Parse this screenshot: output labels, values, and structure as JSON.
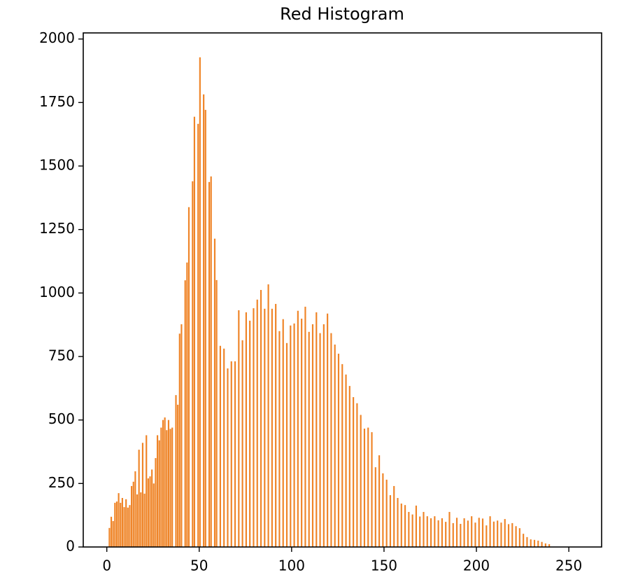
{
  "chart_data": {
    "type": "histogram",
    "title": "Red Histogram",
    "color": "#ef8427",
    "bins": [
      0,
      1,
      2,
      3,
      4,
      5,
      6,
      7,
      8,
      9,
      10,
      11,
      12,
      13,
      14,
      15,
      16,
      17,
      18,
      19,
      20,
      21,
      22,
      23,
      24,
      25,
      26,
      27,
      28,
      29,
      30,
      31,
      32,
      33,
      34,
      35,
      36,
      37,
      38,
      39,
      40,
      41,
      42,
      43,
      44,
      45,
      46,
      47,
      48,
      49,
      50,
      51,
      52,
      53,
      54,
      55,
      56,
      57,
      58,
      59,
      60,
      61,
      62,
      63,
      64,
      65,
      66,
      67,
      68,
      69,
      70,
      71,
      72,
      73,
      74,
      75,
      76,
      77,
      78,
      79,
      80,
      81,
      82,
      83,
      84,
      85,
      86,
      87,
      88,
      89,
      90,
      91,
      92,
      93,
      94,
      95,
      96,
      97,
      98,
      99,
      100,
      101,
      102,
      103,
      104,
      105,
      106,
      107,
      108,
      109,
      110,
      111,
      112,
      113,
      114,
      115,
      116,
      117,
      118,
      119,
      120,
      121,
      122,
      123,
      124,
      125,
      126,
      127,
      128,
      129,
      130,
      131,
      132,
      133,
      134,
      135,
      136,
      137,
      138,
      139,
      140,
      141,
      142,
      143,
      144,
      145,
      146,
      147,
      148,
      149,
      150,
      151,
      152,
      153,
      154,
      155,
      156,
      157,
      158,
      159,
      160,
      161,
      162,
      163,
      164,
      165,
      166,
      167,
      168,
      169,
      170,
      171,
      172,
      173,
      174,
      175,
      176,
      177,
      178,
      179,
      180,
      181,
      182,
      183,
      184,
      185,
      186,
      187,
      188,
      189,
      190,
      191,
      192,
      193,
      194,
      195,
      196,
      197,
      198,
      199,
      200,
      201,
      202,
      203,
      204,
      205,
      206,
      207,
      208,
      209,
      210,
      211,
      212,
      213,
      214,
      215,
      216,
      217,
      218,
      219,
      220,
      221,
      222,
      223,
      224,
      225,
      226,
      227,
      228,
      229,
      230,
      231,
      232,
      233,
      234,
      235,
      236,
      237,
      238,
      239,
      240,
      241
    ],
    "values": [
      0,
      75,
      119,
      102,
      174,
      179,
      212,
      174,
      193,
      157,
      188,
      155,
      165,
      240,
      257,
      298,
      207,
      383,
      215,
      410,
      210,
      440,
      270,
      278,
      305,
      250,
      350,
      440,
      420,
      470,
      500,
      510,
      460,
      500,
      465,
      470,
      0,
      598,
      560,
      840,
      877,
      0,
      1050,
      1120,
      1338,
      0,
      1440,
      1694,
      0,
      1666,
      1928,
      0,
      1782,
      1721,
      0,
      1437,
      1459,
      0,
      1214,
      1051,
      0,
      792,
      0,
      781,
      0,
      703,
      0,
      731,
      0,
      731,
      0,
      932,
      0,
      814,
      0,
      924,
      0,
      891,
      0,
      940,
      0,
      974,
      0,
      1012,
      0,
      938,
      0,
      1034,
      0,
      938,
      0,
      957,
      0,
      850,
      0,
      897,
      0,
      803,
      0,
      872,
      0,
      880,
      0,
      930,
      0,
      899,
      0,
      946,
      0,
      847,
      0,
      877,
      0,
      924,
      0,
      842,
      0,
      877,
      0,
      919,
      0,
      842,
      0,
      797,
      0,
      761,
      0,
      720,
      0,
      679,
      0,
      634,
      0,
      590,
      0,
      566,
      0,
      520,
      0,
      466,
      0,
      470,
      0,
      452,
      0,
      314,
      0,
      361,
      0,
      290,
      0,
      265,
      0,
      204,
      0,
      240,
      0,
      193,
      0,
      171,
      0,
      165,
      0,
      138,
      0,
      128,
      0,
      163,
      0,
      120,
      0,
      138,
      0,
      121,
      0,
      113,
      0,
      121,
      0,
      105,
      0,
      113,
      0,
      99,
      0,
      138,
      0,
      94,
      0,
      115,
      0,
      91,
      0,
      113,
      0,
      104,
      0,
      121,
      0,
      96,
      0,
      115,
      0,
      112,
      0,
      85,
      0,
      121,
      0,
      100,
      0,
      104,
      0,
      96,
      0,
      110,
      0,
      90,
      0,
      94,
      0,
      82,
      0,
      74,
      0,
      52,
      0,
      39,
      0,
      30,
      0,
      28,
      0,
      25,
      0,
      20,
      0,
      14,
      0,
      11,
      0
    ],
    "xlim": [
      -12.75,
      267.75
    ],
    "xticks": [
      0,
      50,
      100,
      150,
      200,
      250
    ],
    "ylim": [
      0,
      2024
    ],
    "yticks": [
      0,
      250,
      500,
      750,
      1000,
      1250,
      1500,
      1750,
      2000
    ]
  }
}
